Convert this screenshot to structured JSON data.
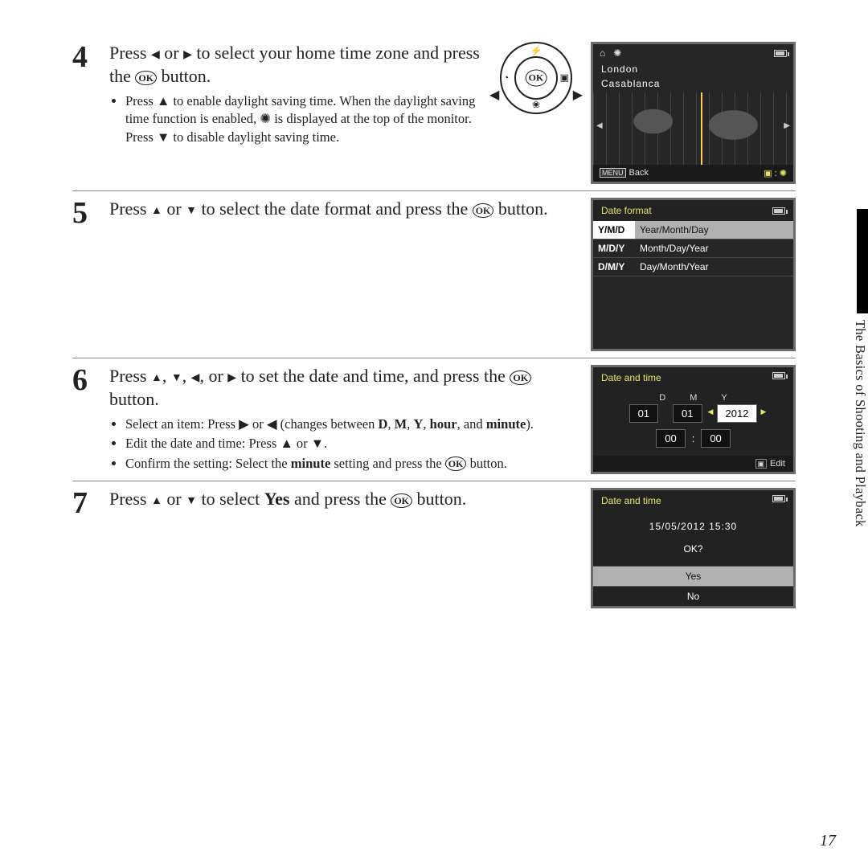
{
  "sideTab": "The Basics of Shooting and Playback",
  "pageNumber": "17",
  "steps": {
    "s4": {
      "num": "4",
      "title_pre": "Press ",
      "title_mid": " or ",
      "title_post": " to select your home time zone and press the ",
      "title_end": " button.",
      "bullet1": "Press ▲ to enable daylight saving time. When the daylight saving time function is enabled, ✺ is displayed at the top of the monitor. Press ▼ to disable daylight saving time."
    },
    "s5": {
      "num": "5",
      "title_pre": "Press ",
      "title_mid": " or ",
      "title_post": " to select the date format and press the ",
      "title_end": " button."
    },
    "s6": {
      "num": "6",
      "title_pre": "Press ",
      "title_sep": ", ",
      "title_or": ", or ",
      "title_post": " to set the date and time, and press the ",
      "title_end": " button.",
      "b1_pre": "Select an item: Press ▶ or ◀ (changes between ",
      "b1_D": "D",
      "b1_M": "M",
      "b1_Y": "Y",
      "b1_hour": "hour",
      "b1_and": ", and ",
      "b1_minute": "minute",
      "b1_end": ").",
      "b2": "Edit the date and time: Press ▲ or ▼.",
      "b3_pre": "Confirm the setting: Select the ",
      "b3_min": "minute",
      "b3_post": " setting and press the ",
      "b3_end": " button."
    },
    "s7": {
      "num": "7",
      "title_pre": "Press ",
      "title_mid": " or ",
      "title_post": " to select ",
      "title_yes": "Yes",
      "title_after": " and press the ",
      "title_end": " button."
    }
  },
  "tzScreen": {
    "city1": "London",
    "city2": "Casablanca",
    "back": "Back",
    "homeIcon": "⌂",
    "globeIcon": "✺"
  },
  "dformat": {
    "header": "Date format",
    "rows": [
      {
        "code": "Y/M/D",
        "label": "Year/Month/Day",
        "selected": true
      },
      {
        "code": "M/D/Y",
        "label": "Month/Day/Year",
        "selected": false
      },
      {
        "code": "D/M/Y",
        "label": "Day/Month/Year",
        "selected": false
      }
    ]
  },
  "dtime": {
    "header": "Date and time",
    "D": "D",
    "M": "M",
    "Y": "Y",
    "day": "01",
    "month": "01",
    "year": "2012",
    "hh": "00",
    "mm": "00",
    "edit": "Edit"
  },
  "confirm": {
    "header": "Date and time",
    "datetime": "15/05/2012  15:30",
    "ok": "OK?",
    "yes": "Yes",
    "no": "No"
  }
}
